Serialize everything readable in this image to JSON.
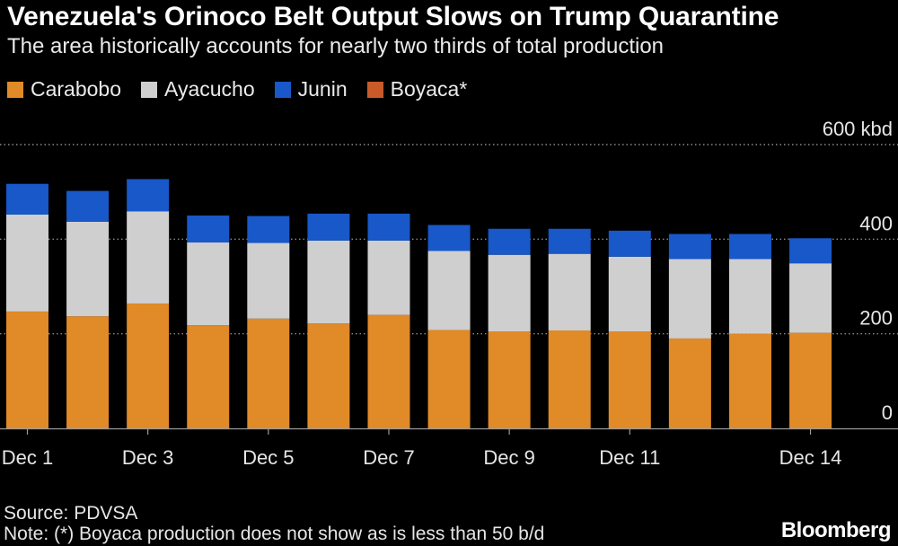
{
  "title": "Venezuela's Orinoco Belt Output Slows on Trump Quarantine",
  "subtitle": "The area historically accounts for nearly two thirds of total production",
  "legend": [
    {
      "label": "Carabobo",
      "color": "#e08a28"
    },
    {
      "label": "Ayacucho",
      "color": "#cfcfcf"
    },
    {
      "label": "Junin",
      "color": "#1858c8"
    },
    {
      "label": "Boyaca*",
      "color": "#c85a2a"
    }
  ],
  "source": "Source: PDVSA",
  "note": "Note: (*) Boyaca production does not show as is less than 50 b/d",
  "brand": "Bloomberg",
  "chart_data": {
    "type": "bar",
    "stacked": true,
    "unit": "kbd",
    "categories": [
      "Dec 1",
      "Dec 2",
      "Dec 3",
      "Dec 4",
      "Dec 5",
      "Dec 6",
      "Dec 7",
      "Dec 8",
      "Dec 9",
      "Dec 10",
      "Dec 11",
      "Dec 12",
      "Dec 13",
      "Dec 14"
    ],
    "x_tick_labels": [
      {
        "category": "Dec 1",
        "label": "Dec 1"
      },
      {
        "category": "Dec 3",
        "label": "Dec 3"
      },
      {
        "category": "Dec 5",
        "label": "Dec 5"
      },
      {
        "category": "Dec 7",
        "label": "Dec 7"
      },
      {
        "category": "Dec 9",
        "label": "Dec 9"
      },
      {
        "category": "Dec 11",
        "label": "Dec 11"
      },
      {
        "category": "Dec 14",
        "label": "Dec 14"
      }
    ],
    "series": [
      {
        "name": "Carabobo",
        "color": "#e08a28",
        "values": [
          247,
          237,
          264,
          218,
          232,
          222,
          240,
          208,
          205,
          207,
          205,
          190,
          200,
          202
        ]
      },
      {
        "name": "Ayacucho",
        "color": "#cfcfcf",
        "values": [
          205,
          200,
          195,
          175,
          160,
          175,
          157,
          167,
          162,
          162,
          158,
          168,
          158,
          147
        ]
      },
      {
        "name": "Junin",
        "color": "#1858c8",
        "values": [
          65,
          65,
          68,
          57,
          57,
          57,
          57,
          55,
          55,
          53,
          55,
          53,
          53,
          53
        ]
      },
      {
        "name": "Boyaca*",
        "color": "#c85a2a",
        "values": [
          0,
          0,
          0,
          0,
          0,
          0,
          0,
          0,
          0,
          0,
          0,
          0,
          0,
          0
        ]
      }
    ],
    "ylim": [
      0,
      600
    ],
    "y_ticks": [
      {
        "value": 0,
        "label": "0"
      },
      {
        "value": 200,
        "label": "200"
      },
      {
        "value": 400,
        "label": "400"
      },
      {
        "value": 600,
        "label": "600 kbd"
      }
    ],
    "grid": "horizontal dotted",
    "y_axis_side": "right",
    "legend_position": "top-left"
  }
}
